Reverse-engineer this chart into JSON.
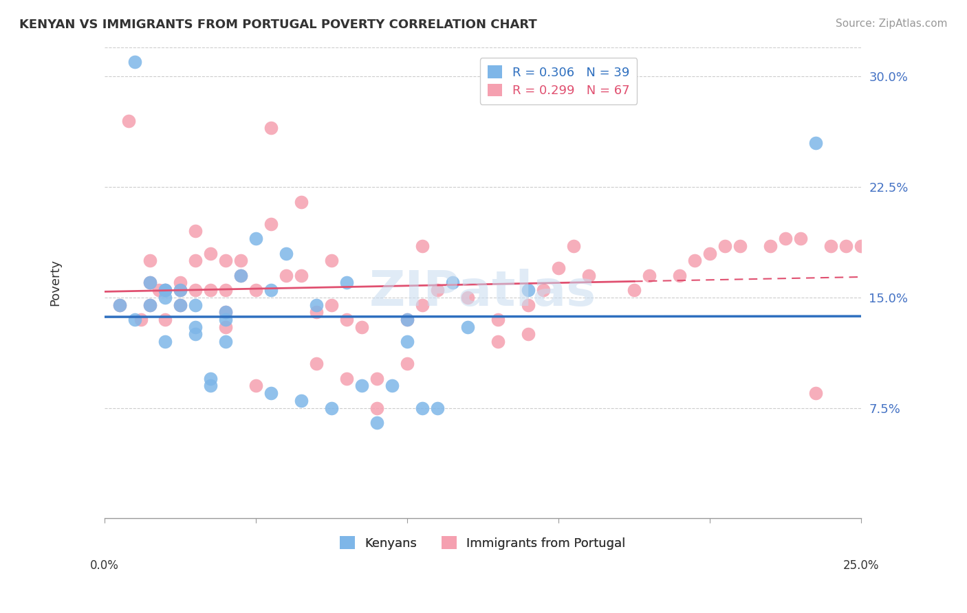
{
  "title": "KENYAN VS IMMIGRANTS FROM PORTUGAL POVERTY CORRELATION CHART",
  "source": "Source: ZipAtlas.com",
  "ylabel": "Poverty",
  "yticks": [
    0.075,
    0.15,
    0.225,
    0.3
  ],
  "ytick_labels": [
    "7.5%",
    "15.0%",
    "22.5%",
    "30.0%"
  ],
  "xlim": [
    0.0,
    0.25
  ],
  "ylim": [
    0.0,
    0.32
  ],
  "legend_blue_R": "0.306",
  "legend_blue_N": "39",
  "legend_pink_R": "0.299",
  "legend_pink_N": "67",
  "legend_label_blue": "Kenyans",
  "legend_label_pink": "Immigrants from Portugal",
  "blue_color": "#7EB6E8",
  "pink_color": "#F5A0B0",
  "line_blue_color": "#2E6FBF",
  "line_pink_color": "#E05070",
  "watermark": "ZIPatlas",
  "blue_x": [
    0.005,
    0.01,
    0.01,
    0.015,
    0.015,
    0.02,
    0.02,
    0.02,
    0.02,
    0.025,
    0.025,
    0.03,
    0.03,
    0.03,
    0.035,
    0.035,
    0.04,
    0.04,
    0.04,
    0.045,
    0.05,
    0.055,
    0.055,
    0.06,
    0.065,
    0.07,
    0.075,
    0.08,
    0.085,
    0.09,
    0.095,
    0.1,
    0.1,
    0.105,
    0.11,
    0.115,
    0.12,
    0.14,
    0.235
  ],
  "blue_y": [
    0.145,
    0.31,
    0.135,
    0.16,
    0.145,
    0.155,
    0.155,
    0.15,
    0.12,
    0.155,
    0.145,
    0.145,
    0.13,
    0.125,
    0.095,
    0.09,
    0.14,
    0.135,
    0.12,
    0.165,
    0.19,
    0.155,
    0.085,
    0.18,
    0.08,
    0.145,
    0.075,
    0.16,
    0.09,
    0.065,
    0.09,
    0.135,
    0.12,
    0.075,
    0.075,
    0.16,
    0.13,
    0.155,
    0.255
  ],
  "pink_x": [
    0.005,
    0.008,
    0.012,
    0.015,
    0.015,
    0.015,
    0.018,
    0.02,
    0.02,
    0.025,
    0.025,
    0.025,
    0.03,
    0.03,
    0.03,
    0.035,
    0.035,
    0.04,
    0.04,
    0.04,
    0.04,
    0.045,
    0.045,
    0.05,
    0.05,
    0.055,
    0.055,
    0.06,
    0.065,
    0.065,
    0.07,
    0.07,
    0.075,
    0.075,
    0.08,
    0.08,
    0.085,
    0.09,
    0.09,
    0.1,
    0.1,
    0.105,
    0.105,
    0.11,
    0.12,
    0.13,
    0.13,
    0.14,
    0.14,
    0.145,
    0.15,
    0.155,
    0.16,
    0.175,
    0.18,
    0.19,
    0.195,
    0.2,
    0.205,
    0.21,
    0.22,
    0.225,
    0.23,
    0.235,
    0.24,
    0.245,
    0.25
  ],
  "pink_y": [
    0.145,
    0.27,
    0.135,
    0.175,
    0.16,
    0.145,
    0.155,
    0.155,
    0.135,
    0.16,
    0.155,
    0.145,
    0.195,
    0.175,
    0.155,
    0.18,
    0.155,
    0.175,
    0.155,
    0.14,
    0.13,
    0.175,
    0.165,
    0.09,
    0.155,
    0.265,
    0.2,
    0.165,
    0.215,
    0.165,
    0.14,
    0.105,
    0.175,
    0.145,
    0.135,
    0.095,
    0.13,
    0.075,
    0.095,
    0.135,
    0.105,
    0.185,
    0.145,
    0.155,
    0.15,
    0.135,
    0.12,
    0.125,
    0.145,
    0.155,
    0.17,
    0.185,
    0.165,
    0.155,
    0.165,
    0.165,
    0.175,
    0.18,
    0.185,
    0.185,
    0.185,
    0.19,
    0.19,
    0.085,
    0.185,
    0.185,
    0.185
  ]
}
